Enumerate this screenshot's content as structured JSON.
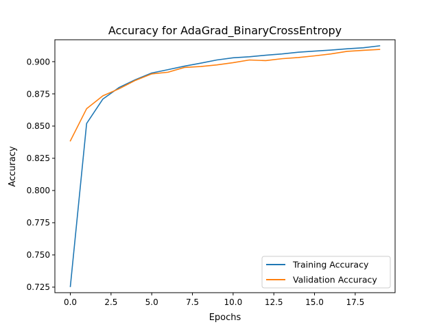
{
  "chart_data": {
    "type": "line",
    "title": "Accuracy for AdaGrad_BinaryCrossEntropy",
    "xlabel": "Epochs",
    "ylabel": "Accuracy",
    "x": [
      0,
      1,
      2,
      3,
      4,
      5,
      6,
      7,
      8,
      9,
      10,
      11,
      12,
      13,
      14,
      15,
      16,
      17,
      18,
      19
    ],
    "xlim": [
      -0.95,
      19.95
    ],
    "ylim": [
      0.7207,
      0.917
    ],
    "xticks": [
      0.0,
      2.5,
      5.0,
      7.5,
      10.0,
      12.5,
      15.0,
      17.5
    ],
    "xtick_labels": [
      "0.0",
      "2.5",
      "5.0",
      "7.5",
      "10.0",
      "12.5",
      "15.0",
      "17.5"
    ],
    "yticks": [
      0.725,
      0.75,
      0.775,
      0.8,
      0.825,
      0.85,
      0.875,
      0.9
    ],
    "ytick_labels": [
      "0.725",
      "0.750",
      "0.775",
      "0.800",
      "0.825",
      "0.850",
      "0.875",
      "0.900"
    ],
    "grid": false,
    "legend_position": "lower-right",
    "series": [
      {
        "name": "Training Accuracy",
        "color": "#1f77b4",
        "values": [
          0.7255,
          0.852,
          0.871,
          0.88,
          0.886,
          0.8912,
          0.8938,
          0.8965,
          0.8988,
          0.9013,
          0.903,
          0.9038,
          0.905,
          0.906,
          0.9073,
          0.9082,
          0.909,
          0.91,
          0.9108,
          0.9123
        ]
      },
      {
        "name": "Validation Accuracy",
        "color": "#ff7f0e",
        "values": [
          0.8385,
          0.8635,
          0.8735,
          0.879,
          0.8855,
          0.8905,
          0.8918,
          0.8955,
          0.8962,
          0.8975,
          0.8992,
          0.9013,
          0.9008,
          0.9023,
          0.9032,
          0.9045,
          0.906,
          0.908,
          0.9088,
          0.9095
        ]
      }
    ]
  }
}
